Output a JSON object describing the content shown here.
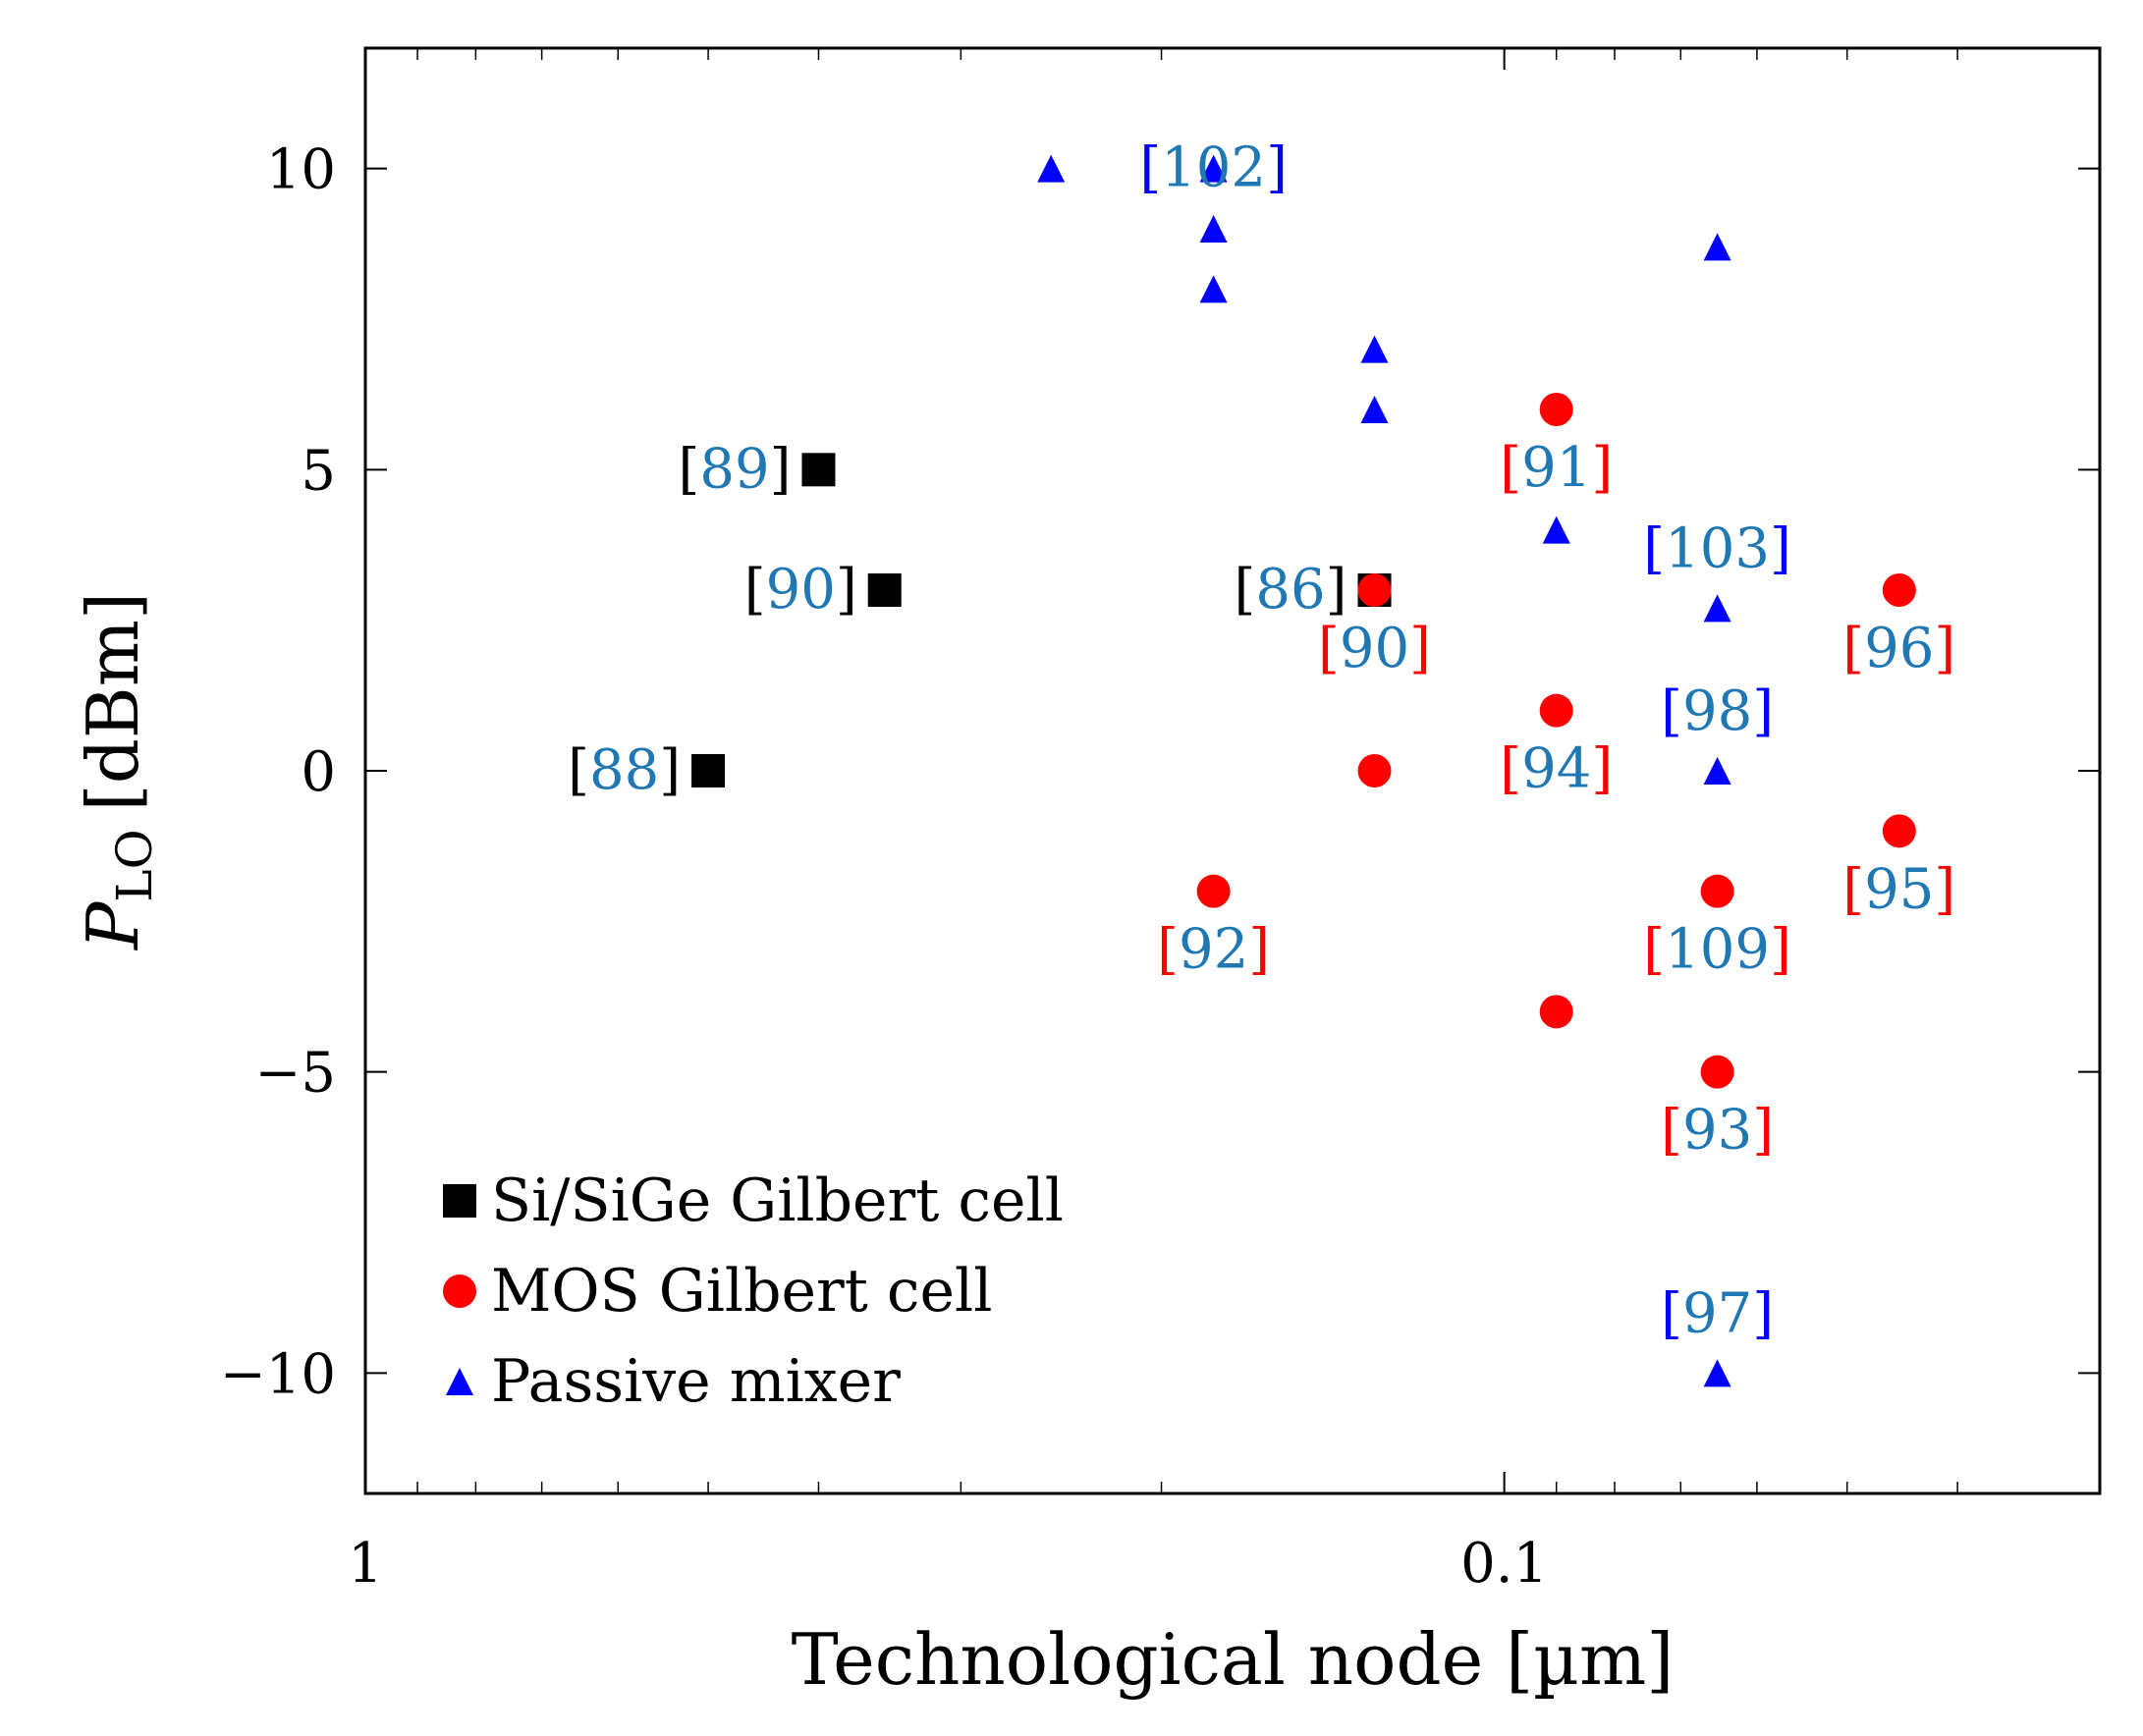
{
  "chart_data": {
    "type": "scatter",
    "title": "",
    "xlabel": "Technological node [µm]",
    "ylabel_main": "P",
    "ylabel_sub": "LO",
    "ylabel_unit": "[dBm]",
    "x_scale": "log",
    "x_reversed": true,
    "xlim": [
      1,
      0.03
    ],
    "ylim": [
      -12,
      12
    ],
    "x_ticks": [
      {
        "value": 1,
        "label": "1"
      },
      {
        "value": 0.1,
        "label": "0.1"
      }
    ],
    "y_ticks": [
      {
        "value": 10,
        "label": "10"
      },
      {
        "value": 5,
        "label": "5"
      },
      {
        "value": 0,
        "label": "0"
      },
      {
        "value": -5,
        "label": "−5"
      },
      {
        "value": -10,
        "label": "−10"
      }
    ],
    "grid": false,
    "legend_position": "bottom-left",
    "series": [
      {
        "name": "Si/SiGe Gilbert cell",
        "marker": "square",
        "color": "#000000",
        "points": [
          {
            "x": 0.5,
            "y": 0,
            "ref": "88",
            "label_pos": "left"
          },
          {
            "x": 0.4,
            "y": 5,
            "ref": "89",
            "label_pos": "left"
          },
          {
            "x": 0.35,
            "y": 3,
            "ref": "90",
            "label_pos": "left"
          },
          {
            "x": 0.13,
            "y": 3,
            "ref": "86",
            "label_pos": "left"
          }
        ]
      },
      {
        "name": "MOS Gilbert cell",
        "marker": "circle",
        "color": "#ff0000",
        "points": [
          {
            "x": 0.13,
            "y": 3,
            "ref": "90",
            "label_pos": "below"
          },
          {
            "x": 0.13,
            "y": 0,
            "ref": "",
            "label_pos": "none"
          },
          {
            "x": 0.18,
            "y": -2,
            "ref": "92",
            "label_pos": "below"
          },
          {
            "x": 0.09,
            "y": 6,
            "ref": "91",
            "label_pos": "below"
          },
          {
            "x": 0.09,
            "y": 1,
            "ref": "94",
            "label_pos": "below"
          },
          {
            "x": 0.09,
            "y": -4,
            "ref": "",
            "label_pos": "none"
          },
          {
            "x": 0.065,
            "y": -2,
            "ref": "109",
            "label_pos": "below"
          },
          {
            "x": 0.065,
            "y": -5,
            "ref": "93",
            "label_pos": "below"
          },
          {
            "x": 0.045,
            "y": 3,
            "ref": "96",
            "label_pos": "below"
          },
          {
            "x": 0.045,
            "y": -1,
            "ref": "95",
            "label_pos": "below"
          }
        ]
      },
      {
        "name": "Passive mixer",
        "marker": "triangle",
        "color": "#0000ff",
        "points": [
          {
            "x": 0.25,
            "y": 10,
            "ref": "",
            "label_pos": "none"
          },
          {
            "x": 0.18,
            "y": 10,
            "ref": "102",
            "label_pos": "on"
          },
          {
            "x": 0.18,
            "y": 9,
            "ref": "",
            "label_pos": "none"
          },
          {
            "x": 0.18,
            "y": 8,
            "ref": "",
            "label_pos": "none"
          },
          {
            "x": 0.13,
            "y": 7,
            "ref": "",
            "label_pos": "none"
          },
          {
            "x": 0.13,
            "y": 6,
            "ref": "",
            "label_pos": "none"
          },
          {
            "x": 0.09,
            "y": 4,
            "ref": "",
            "label_pos": "none"
          },
          {
            "x": 0.065,
            "y": 8.7,
            "ref": "",
            "label_pos": "none"
          },
          {
            "x": 0.065,
            "y": 2.7,
            "ref": "103",
            "label_pos": "above"
          },
          {
            "x": 0.065,
            "y": 0,
            "ref": "98",
            "label_pos": "above"
          },
          {
            "x": 0.065,
            "y": -10,
            "ref": "97",
            "label_pos": "above"
          }
        ]
      }
    ]
  }
}
